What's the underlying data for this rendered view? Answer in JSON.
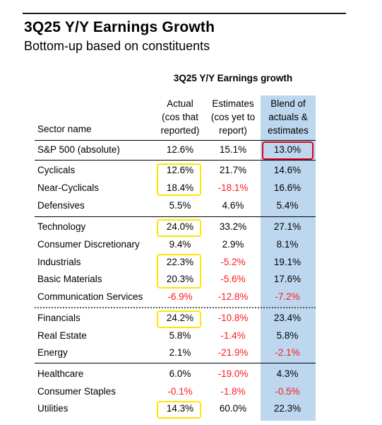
{
  "title": "3Q25 Y/Y Earnings Growth",
  "subtitle": "Bottom-up based on constituents",
  "group_header": "3Q25 Y/Y Earnings growth",
  "columns": {
    "sector": "Sector name",
    "actual": [
      "Actual",
      "(cos that",
      "reported)"
    ],
    "estimates": [
      "Estimates",
      "(cos yet to",
      "report)"
    ],
    "blend": [
      "Blend of",
      "actuals &",
      "estimates"
    ]
  },
  "rows": [
    {
      "name": "S&P 500 (absolute)",
      "actual": "12.6%",
      "estimates": "15.1%",
      "blend": "13.0%"
    },
    {
      "name": "Cyclicals",
      "actual": "12.6%",
      "estimates": "21.7%",
      "blend": "14.6%"
    },
    {
      "name": "Near-Cyclicals",
      "actual": "18.4%",
      "estimates": "-18.1%",
      "blend": "16.6%"
    },
    {
      "name": "Defensives",
      "actual": "5.5%",
      "estimates": "4.6%",
      "blend": "5.4%"
    },
    {
      "name": "Technology",
      "actual": "24.0%",
      "estimates": "33.2%",
      "blend": "27.1%"
    },
    {
      "name": "Consumer Discretionary",
      "actual": "9.4%",
      "estimates": "2.9%",
      "blend": "8.1%"
    },
    {
      "name": "Industrials",
      "actual": "22.3%",
      "estimates": "-5.2%",
      "blend": "19.1%"
    },
    {
      "name": "Basic Materials",
      "actual": "20.3%",
      "estimates": "-5.6%",
      "blend": "17.6%"
    },
    {
      "name": "Communication Services",
      "actual": "-6.9%",
      "estimates": "-12.8%",
      "blend": "-7.2%"
    },
    {
      "name": "Financials",
      "actual": "24.2%",
      "estimates": "-10.8%",
      "blend": "23.4%"
    },
    {
      "name": "Real Estate",
      "actual": "5.8%",
      "estimates": "-1.4%",
      "blend": "5.8%"
    },
    {
      "name": "Energy",
      "actual": "2.1%",
      "estimates": "-21.9%",
      "blend": "-2.1%"
    },
    {
      "name": "Healthcare",
      "actual": "6.0%",
      "estimates": "-19.0%",
      "blend": "4.3%"
    },
    {
      "name": "Consumer Staples",
      "actual": "-0.1%",
      "estimates": "-1.8%",
      "blend": "-0.5%"
    },
    {
      "name": "Utilities",
      "actual": "14.3%",
      "estimates": "60.0%",
      "blend": "22.3%"
    }
  ],
  "colors": {
    "negative": "#ff1a1a",
    "blend_column_bg": "#bdd7ee",
    "highlight_yellow": "#ffe600",
    "highlight_red": "#e0001b"
  }
}
